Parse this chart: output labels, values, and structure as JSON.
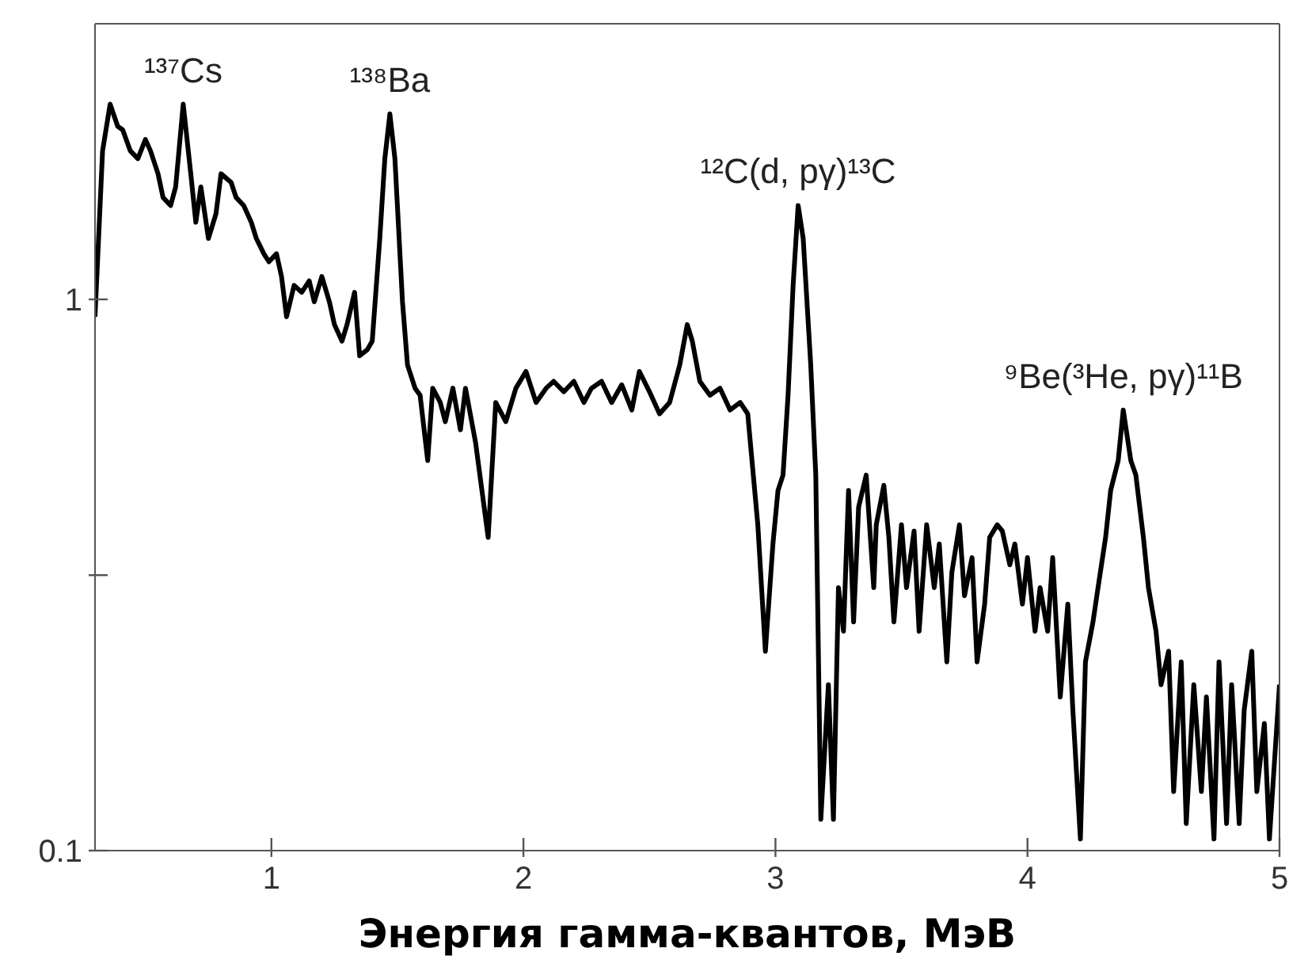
{
  "chart_data": {
    "type": "line",
    "xlabel": "Энергия гамма-квантов, МэВ",
    "log": "y",
    "xlim": [
      0.3,
      5
    ],
    "ylim": [
      0.1,
      3.162
    ],
    "xticks": [
      1,
      2,
      3,
      4,
      5
    ],
    "yticks": [
      0.1,
      {
        "value": 0.316,
        "label": null
      },
      1
    ],
    "x": [
      0.3,
      0.33,
      0.36,
      0.39,
      0.41,
      0.44,
      0.47,
      0.5,
      0.52,
      0.55,
      0.57,
      0.6,
      0.62,
      0.65,
      0.68,
      0.7,
      0.72,
      0.75,
      0.78,
      0.8,
      0.84,
      0.86,
      0.89,
      0.92,
      0.94,
      0.97,
      0.99,
      1.02,
      1.04,
      1.06,
      1.09,
      1.12,
      1.15,
      1.17,
      1.2,
      1.23,
      1.25,
      1.28,
      1.3,
      1.33,
      1.35,
      1.38,
      1.4,
      1.43,
      1.45,
      1.47,
      1.49,
      1.52,
      1.54,
      1.57,
      1.59,
      1.62,
      1.64,
      1.67,
      1.69,
      1.72,
      1.75,
      1.77,
      1.81,
      1.86,
      1.89,
      1.93,
      1.97,
      2.01,
      2.05,
      2.09,
      2.12,
      2.16,
      2.2,
      2.24,
      2.27,
      2.31,
      2.35,
      2.39,
      2.43,
      2.46,
      2.5,
      2.54,
      2.58,
      2.62,
      2.65,
      2.67,
      2.7,
      2.74,
      2.78,
      2.82,
      2.86,
      2.89,
      2.93,
      2.96,
      2.99,
      3.01,
      3.03,
      3.05,
      3.07,
      3.09,
      3.11,
      3.14,
      3.16,
      3.18,
      3.21,
      3.23,
      3.25,
      3.27,
      3.29,
      3.31,
      3.33,
      3.36,
      3.39,
      3.4,
      3.43,
      3.45,
      3.47,
      3.5,
      3.52,
      3.55,
      3.57,
      3.6,
      3.63,
      3.65,
      3.68,
      3.7,
      3.73,
      3.75,
      3.78,
      3.8,
      3.83,
      3.85,
      3.88,
      3.9,
      3.93,
      3.95,
      3.98,
      4.0,
      4.03,
      4.05,
      4.08,
      4.1,
      4.13,
      4.16,
      4.18,
      4.21,
      4.23,
      4.26,
      4.28,
      4.31,
      4.33,
      4.36,
      4.38,
      4.41,
      4.43,
      4.46,
      4.48,
      4.51,
      4.53,
      4.56,
      4.58,
      4.61,
      4.63,
      4.66,
      4.69,
      4.71,
      4.74,
      4.76,
      4.79,
      4.81,
      4.84,
      4.86,
      4.89,
      4.91,
      4.94,
      4.96,
      4.99,
      5.0
    ],
    "series": [
      {
        "color": "#000000",
        "values": [
          0.93,
          1.86,
          2.26,
          2.06,
          2.03,
          1.86,
          1.8,
          1.95,
          1.86,
          1.69,
          1.53,
          1.48,
          1.6,
          2.26,
          1.69,
          1.38,
          1.6,
          1.29,
          1.43,
          1.69,
          1.63,
          1.53,
          1.48,
          1.38,
          1.29,
          1.21,
          1.17,
          1.21,
          1.1,
          0.93,
          1.06,
          1.03,
          1.08,
          0.99,
          1.1,
          0.99,
          0.9,
          0.84,
          0.9,
          1.03,
          0.79,
          0.81,
          0.84,
          1.29,
          1.8,
          2.17,
          1.8,
          0.99,
          0.76,
          0.69,
          0.67,
          0.51,
          0.69,
          0.65,
          0.6,
          0.69,
          0.58,
          0.69,
          0.55,
          0.37,
          0.65,
          0.6,
          0.69,
          0.74,
          0.65,
          0.69,
          0.71,
          0.68,
          0.71,
          0.65,
          0.69,
          0.71,
          0.65,
          0.7,
          0.63,
          0.74,
          0.68,
          0.62,
          0.65,
          0.76,
          0.9,
          0.84,
          0.71,
          0.67,
          0.69,
          0.63,
          0.65,
          0.62,
          0.39,
          0.23,
          0.36,
          0.45,
          0.48,
          0.67,
          1.06,
          1.48,
          1.29,
          0.76,
          0.48,
          0.114,
          0.2,
          0.114,
          0.3,
          0.25,
          0.45,
          0.26,
          0.42,
          0.48,
          0.3,
          0.39,
          0.46,
          0.37,
          0.26,
          0.39,
          0.3,
          0.38,
          0.25,
          0.39,
          0.3,
          0.36,
          0.22,
          0.32,
          0.39,
          0.29,
          0.34,
          0.22,
          0.28,
          0.37,
          0.39,
          0.38,
          0.33,
          0.36,
          0.28,
          0.34,
          0.25,
          0.3,
          0.25,
          0.34,
          0.19,
          0.28,
          0.18,
          0.105,
          0.22,
          0.26,
          0.3,
          0.37,
          0.45,
          0.51,
          0.63,
          0.51,
          0.48,
          0.37,
          0.3,
          0.25,
          0.2,
          0.23,
          0.128,
          0.22,
          0.112,
          0.2,
          0.128,
          0.19,
          0.105,
          0.22,
          0.112,
          0.2,
          0.112,
          0.18,
          0.23,
          0.128,
          0.17,
          0.105,
          0.17,
          0.2
        ]
      }
    ],
    "annotations": [
      {
        "text": "¹³⁷Cs",
        "x": 0.65,
        "y": 2.26
      },
      {
        "text": "¹³⁸Ba",
        "x": 1.47,
        "y": 2.17
      },
      {
        "text": "¹²C(d, pγ)¹³C",
        "x": 3.09,
        "y": 1.48
      },
      {
        "text": "⁹Be(³He, pγ)¹¹B",
        "x": 4.38,
        "y": 0.63
      }
    ]
  }
}
